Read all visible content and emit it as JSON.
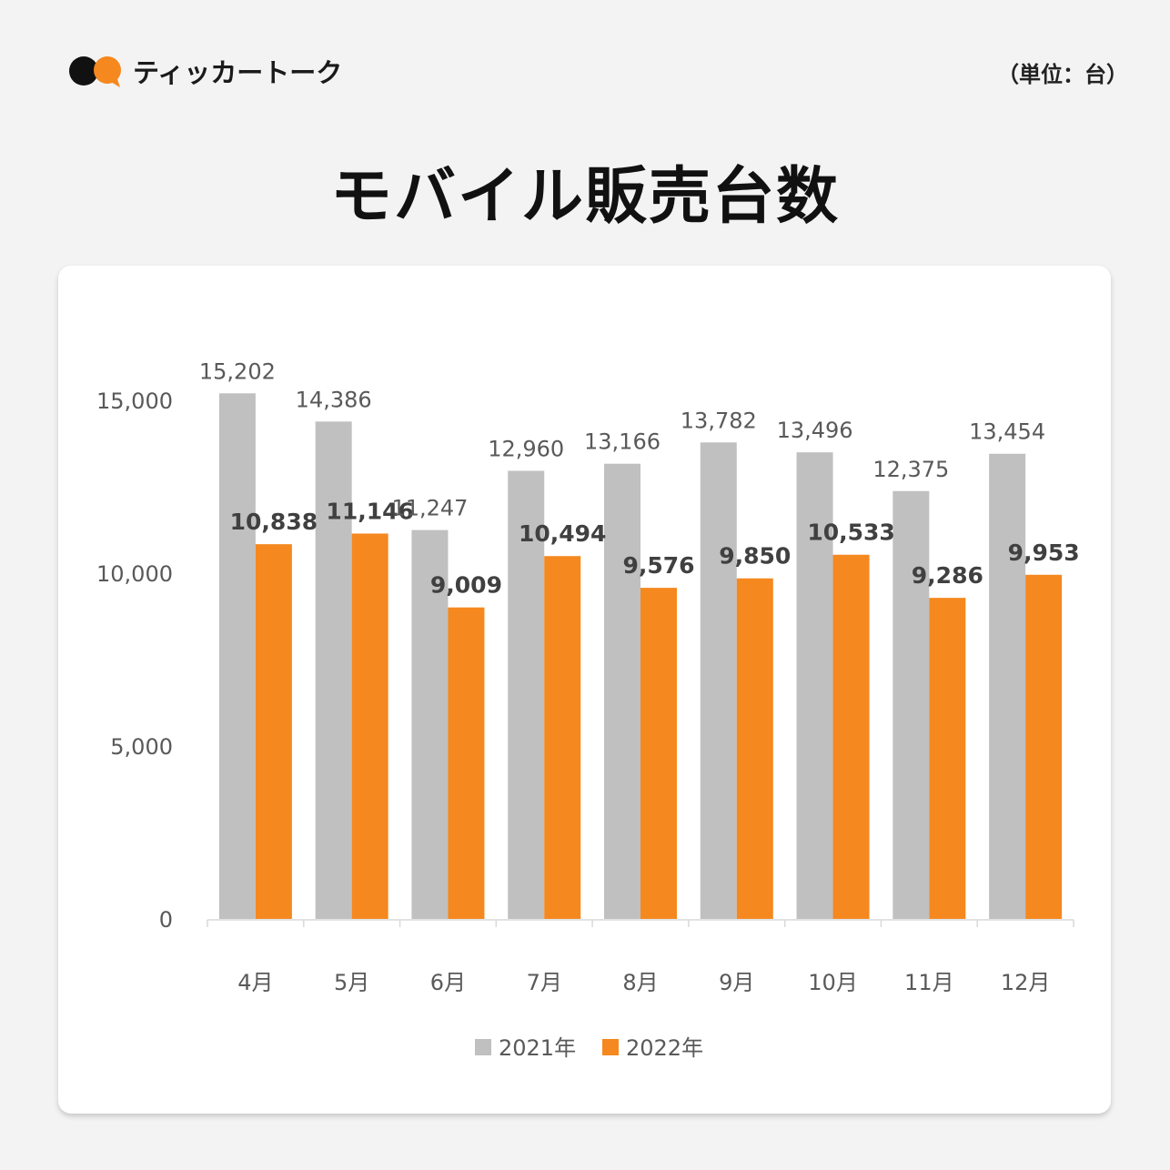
{
  "brand": {
    "name": "ティッカートーク",
    "logo_icon": "two-dots-logo-icon"
  },
  "unit_label": "（単位：台）",
  "title": "モバイル販売台数",
  "colors": {
    "series2021": "#c0c0c0",
    "series2022": "#f5881f",
    "text": "#595959",
    "bold": "#404040"
  },
  "chart_data": {
    "type": "bar",
    "title": "モバイル販売台数",
    "categories": [
      "4月",
      "5月",
      "6月",
      "7月",
      "8月",
      "9月",
      "10月",
      "11月",
      "12月"
    ],
    "series": [
      {
        "name": "2021年",
        "values": [
          15202,
          14386,
          11247,
          12960,
          13166,
          13782,
          13496,
          12375,
          13454
        ]
      },
      {
        "name": "2022年",
        "values": [
          10838,
          11146,
          9009,
          10494,
          9576,
          9850,
          10533,
          9286,
          9953
        ]
      }
    ],
    "value_labels": {
      "2021年": [
        "15,202",
        "14,386",
        "11,247",
        "12,960",
        "13,166",
        "13,782",
        "13,496",
        "12,375",
        "13,454"
      ],
      "2022年": [
        "10,838",
        "11,146",
        "9,009",
        "10,494",
        "9,576",
        "9,850",
        "10,533",
        "9,286",
        "9,953"
      ]
    },
    "yticks": [
      0,
      5000,
      10000,
      15000
    ],
    "ytick_labels": [
      "0",
      "5,000",
      "10,000",
      "15,000"
    ],
    "ylim": [
      0,
      15000
    ],
    "grid": false,
    "legend": "bottom-center",
    "xlabel": "",
    "ylabel": ""
  }
}
